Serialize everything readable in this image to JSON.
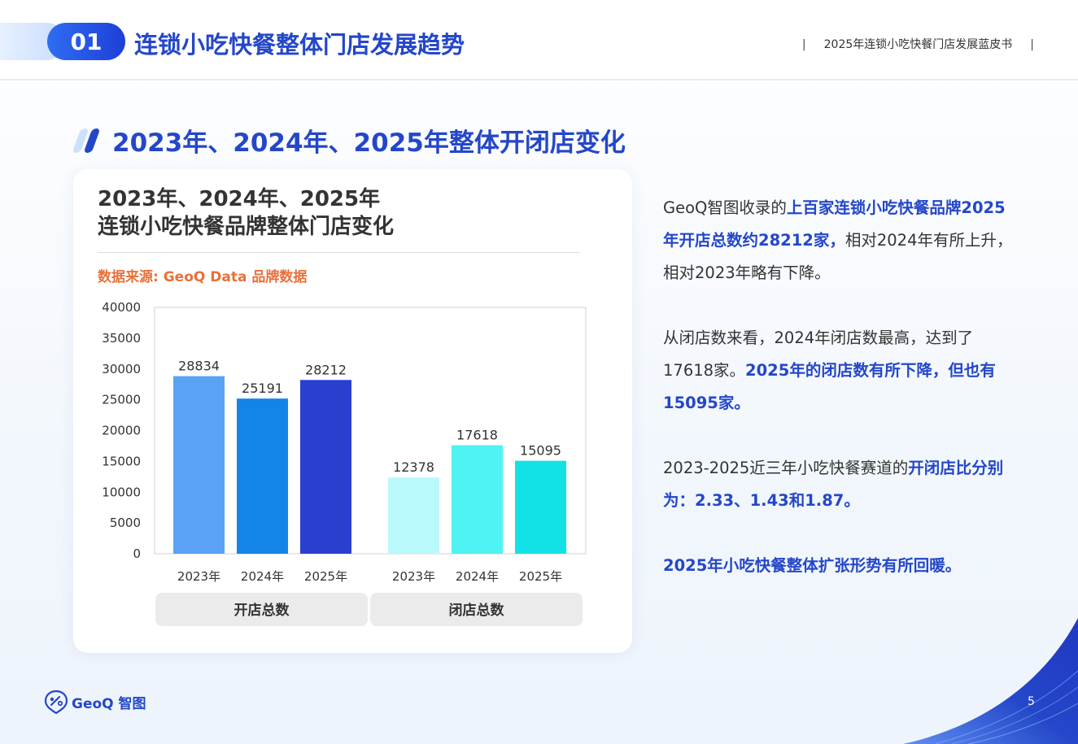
{
  "header": {
    "section_number": "01",
    "section_title": "连锁小吃快餐整体门店发展趋势",
    "doc_title": "2025年连锁小吃快餐门店发展蓝皮书",
    "separator": "|"
  },
  "slide_heading": "2023年、2024年、2025年整体开闭店变化",
  "card": {
    "title_line1": "2023年、2024年、2025年",
    "title_line2": "连锁小吃快餐品牌整体门店变化",
    "source": "数据来源: GeoQ Data 品牌数据"
  },
  "chart_data": {
    "type": "bar",
    "groups": [
      "开店总数",
      "闭店总数"
    ],
    "categories": [
      "2023年",
      "2024年",
      "2025年"
    ],
    "series": [
      {
        "name": "开店总数",
        "values": [
          28834,
          25191,
          28212
        ],
        "colors": [
          "#5aa2f6",
          "#1584e8",
          "#2b3fcf"
        ]
      },
      {
        "name": "闭店总数",
        "values": [
          12378,
          17618,
          15095
        ],
        "colors": [
          "#b9f8fb",
          "#4ff3f3",
          "#12e2e6"
        ]
      }
    ],
    "ylim": [
      0,
      40000
    ],
    "yticks": [
      0,
      5000,
      10000,
      15000,
      20000,
      25000,
      30000,
      35000,
      40000
    ],
    "grid": false,
    "data_labels": true
  },
  "paragraphs": [
    [
      {
        "t": "GeoQ智图收录的",
        "h": false
      },
      {
        "t": "上百家连锁小吃快餐品牌2025年开店总数约28212家，",
        "h": true
      },
      {
        "t": "相对2024年有所上升，相对2023年略有下降。",
        "h": false
      }
    ],
    [
      {
        "t": "从闭店数来看，2024年闭店数最高，达到了17618家。",
        "h": false
      },
      {
        "t": "2025年的闭店数有所下降，但也有15095家。",
        "h": true
      }
    ],
    [
      {
        "t": "2023-2025近三年小吃快餐赛道的",
        "h": false
      },
      {
        "t": "开闭店比分别为：2.33、1.43和1.87。",
        "h": true
      }
    ],
    [
      {
        "t": "2025年小吃快餐整体扩张形势有所回暖。",
        "h": true
      }
    ]
  ],
  "footer": {
    "logo_text": "GeoQ 智图",
    "page_number": "5"
  },
  "colors": {
    "brand_blue": "#2447c9",
    "source_orange": "#e8703a"
  }
}
